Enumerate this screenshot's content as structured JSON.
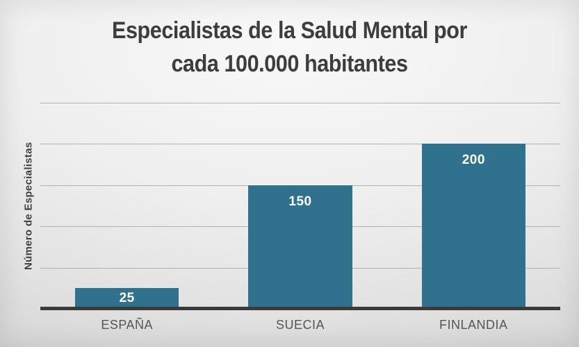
{
  "chart_data": {
    "type": "bar",
    "title": "Especialistas de la Salud Mental por\ncada 100.000 habitantes",
    "categories": [
      "ESPAÑA",
      "SUECIA",
      "FINLANDIA"
    ],
    "values": [
      25,
      150,
      200
    ],
    "xlabel": "",
    "ylabel": "Número de Especialistas",
    "ylim": [
      0,
      250
    ],
    "gridline_step": 50,
    "grid": true,
    "legend": false,
    "bar_width_ratio": 0.6,
    "value_labels": [
      "25",
      "150",
      "200"
    ],
    "value_label_position": "inside-top"
  },
  "colors": {
    "bar": "#30718D",
    "value_label": "#FFFFFF",
    "title": "#3D3D3D",
    "axis_title": "#3F3F3F",
    "category_label": "#565656",
    "gridline": "#9E9E9E",
    "axis_line": "#3A3A3A"
  }
}
